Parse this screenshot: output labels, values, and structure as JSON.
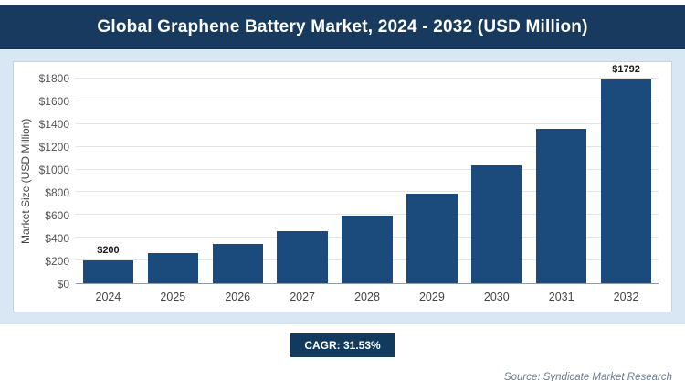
{
  "title": "Global Graphene Battery Market, 2024 - 2032 (USD Million)",
  "footer": {
    "cagr_label": "CAGR: 31.53%",
    "source": "Source: Syndicate Market Research"
  },
  "colors": {
    "banner_bg": "#173a5e",
    "bar": "#1b4a7d",
    "chart_area_bg": "#d9e7f4",
    "badge_bg": "#12395e"
  },
  "chart_data": {
    "type": "bar",
    "title": "Global Graphene Battery Market, 2024 - 2032 (USD Million)",
    "categories": [
      "2024",
      "2025",
      "2026",
      "2027",
      "2028",
      "2029",
      "2030",
      "2031",
      "2032"
    ],
    "values": [
      200,
      263,
      346,
      455,
      598,
      787,
      1035,
      1362,
      1792
    ],
    "bar_labels": [
      "$200",
      null,
      null,
      null,
      null,
      null,
      null,
      null,
      "$1792"
    ],
    "xlabel": "",
    "ylabel": "Market Size (USD Million)",
    "ylim": [
      0,
      1800
    ],
    "yticks": [
      {
        "value": 0,
        "label": "$0"
      },
      {
        "value": 200,
        "label": "$200"
      },
      {
        "value": 400,
        "label": "$400"
      },
      {
        "value": 600,
        "label": "$600"
      },
      {
        "value": 800,
        "label": "$800"
      },
      {
        "value": 1000,
        "label": "$1000"
      },
      {
        "value": 1200,
        "label": "$1200"
      },
      {
        "value": 1400,
        "label": "$1400"
      },
      {
        "value": 1600,
        "label": "$1600"
      },
      {
        "value": 1800,
        "label": "$1800"
      }
    ],
    "grid": true,
    "legend": false,
    "annotations": [
      "CAGR: 31.53%"
    ]
  }
}
